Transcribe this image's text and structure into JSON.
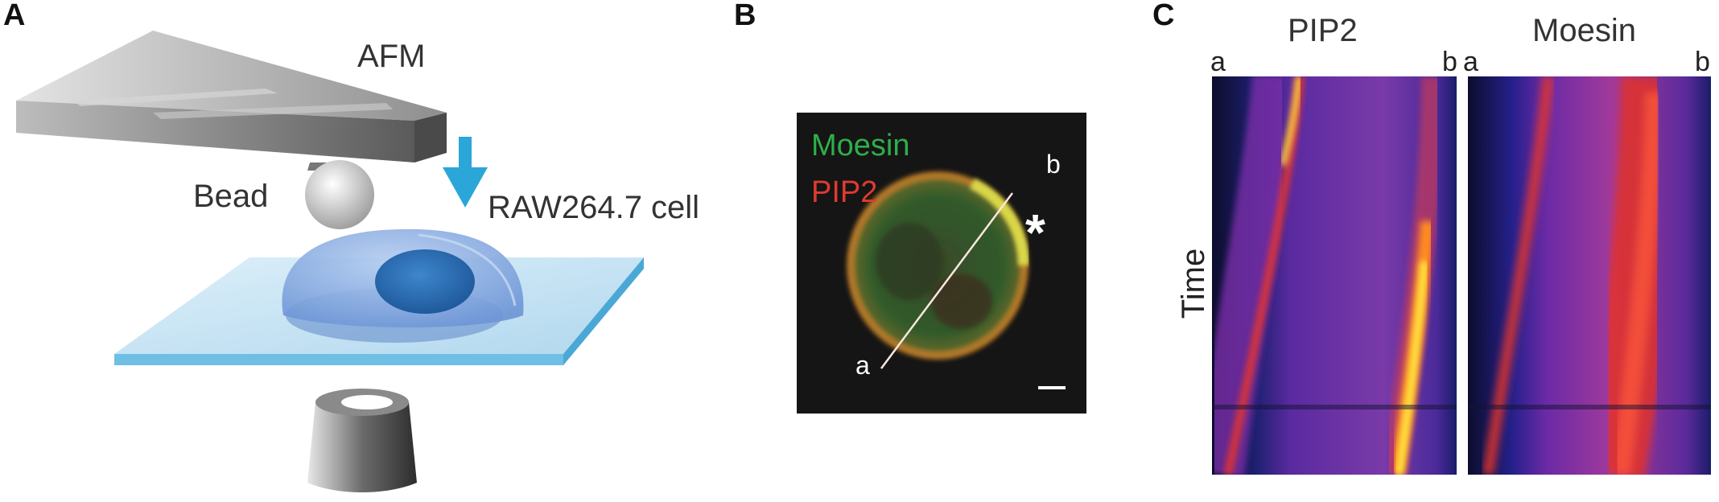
{
  "panels": {
    "a": {
      "letter": "A",
      "labels": {
        "afm": "AFM",
        "bead": "Bead",
        "cell": "RAW264.7 cell"
      }
    },
    "b": {
      "letter": "B",
      "legend": {
        "line1": "Moesin",
        "line2": "PIP2"
      },
      "line_ends": {
        "start": "a",
        "end": "b"
      },
      "asterisk": "*",
      "colors": {
        "moesin": "#2fae4a",
        "pip2": "#e03a2e"
      }
    },
    "c": {
      "letter": "C",
      "kymographs": [
        {
          "title": "PIP2",
          "left": "a",
          "right": "b"
        },
        {
          "title": "Moesin",
          "left": "a",
          "right": "b"
        }
      ],
      "ylabel": "Time"
    }
  },
  "colors": {
    "arrow": "#2aa6d8",
    "glass": "#bfe0f2",
    "cell": "#7aa6e0",
    "nucleus": "#2f6fb6"
  }
}
